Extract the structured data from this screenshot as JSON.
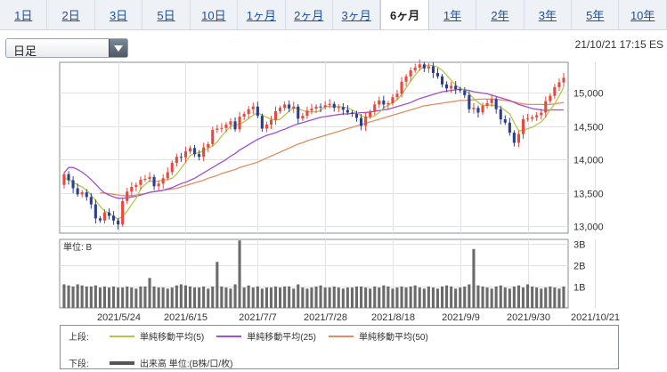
{
  "tabs": [
    {
      "label": "1日"
    },
    {
      "label": "2日"
    },
    {
      "label": "3日"
    },
    {
      "label": "5日"
    },
    {
      "label": "10日"
    },
    {
      "label": "1ヶ月"
    },
    {
      "label": "2ヶ月"
    },
    {
      "label": "3ヶ月"
    },
    {
      "label": "6ヶ月",
      "active": true
    },
    {
      "label": "1年"
    },
    {
      "label": "2年"
    },
    {
      "label": "3年"
    },
    {
      "label": "5年"
    },
    {
      "label": "10年"
    }
  ],
  "period_select": {
    "value": "日足"
  },
  "timestamp": "21/10/21 17:15 ES",
  "colors": {
    "up": "#e8483d",
    "down": "#2c3f8f",
    "ma5": "#b7c64a",
    "ma25": "#a24fd0",
    "ma50": "#e38d62",
    "volume": "#6b6b6b",
    "tab_link": "#1a4fa3"
  },
  "legend": {
    "upper_label": "上段:",
    "lower_label": "下段:",
    "ma5": "単純移動平均(5)",
    "ma25": "単純移動平均(25)",
    "ma50": "単純移動平均(50)",
    "volume": "出来高 単位:(B株/口/枚)"
  },
  "chart_data": [
    {
      "type": "candlestick",
      "ylim": [
        12900,
        15450
      ],
      "y_ticks": [
        "15,000",
        "14,500",
        "14,000",
        "13,500",
        "13,000"
      ],
      "y_tick_values": [
        15000,
        14500,
        14000,
        13500,
        13000
      ],
      "x_tick_labels": [
        "2021/5/24",
        "2021/6/15",
        "2021/7/7",
        "2021/7/28",
        "2021/8/18",
        "2021/9/9",
        "2021/9/30",
        "2021/10/21"
      ],
      "x_tick_index": [
        12,
        27,
        43,
        58,
        73,
        88,
        103,
        118
      ],
      "closes": [
        13780,
        13690,
        13570,
        13480,
        13510,
        13440,
        13330,
        13120,
        13090,
        13210,
        13160,
        13090,
        13030,
        13380,
        13520,
        13590,
        13620,
        13700,
        13710,
        13740,
        13600,
        13640,
        13720,
        13810,
        13950,
        14040,
        14030,
        14120,
        14170,
        14080,
        14040,
        14180,
        14230,
        14440,
        14460,
        14470,
        14520,
        14570,
        14450,
        14640,
        14680,
        14750,
        14790,
        14650,
        14460,
        14520,
        14590,
        14720,
        14770,
        14820,
        14760,
        14790,
        14610,
        14650,
        14730,
        14760,
        14790,
        14780,
        14810,
        14830,
        14770,
        14780,
        14740,
        14700,
        14680,
        14620,
        14500,
        14640,
        14710,
        14820,
        14880,
        14820,
        14840,
        14930,
        14980,
        15160,
        15240,
        15330,
        15370,
        15420,
        15360,
        15390,
        15290,
        15240,
        15120,
        15060,
        15100,
        15050,
        15030,
        14960,
        14750,
        14770,
        14700,
        14800,
        14840,
        14900,
        14750,
        14600,
        14550,
        14400,
        14250,
        14380,
        14600,
        14610,
        14630,
        14660,
        14700,
        14870,
        14950,
        15080,
        15150,
        15220
      ],
      "opens": [
        13620,
        13780,
        13690,
        13570,
        13480,
        13510,
        13440,
        13330,
        13120,
        13090,
        13210,
        13160,
        13090,
        13030,
        13380,
        13520,
        13590,
        13620,
        13700,
        13710,
        13740,
        13600,
        13640,
        13720,
        13810,
        13950,
        14040,
        14030,
        14120,
        14170,
        14080,
        14040,
        14180,
        14230,
        14440,
        14460,
        14470,
        14520,
        14570,
        14450,
        14640,
        14680,
        14750,
        14790,
        14650,
        14460,
        14520,
        14590,
        14720,
        14770,
        14820,
        14760,
        14790,
        14610,
        14650,
        14730,
        14760,
        14790,
        14780,
        14810,
        14830,
        14770,
        14780,
        14740,
        14700,
        14680,
        14620,
        14500,
        14640,
        14710,
        14820,
        14880,
        14820,
        14840,
        14930,
        14980,
        15160,
        15240,
        15330,
        15370,
        15420,
        15360,
        15390,
        15290,
        15240,
        15120,
        15060,
        15100,
        15050,
        15030,
        14960,
        14750,
        14770,
        14700,
        14800,
        14840,
        14900,
        14750,
        14600,
        14550,
        14400,
        14250,
        14380,
        14600,
        14610,
        14630,
        14660,
        14700,
        14870,
        14950,
        15080,
        15150
      ],
      "ma5": [
        13720,
        13700,
        13660,
        13620,
        13590,
        13540,
        13470,
        13390,
        13300,
        13230,
        13200,
        13150,
        13110,
        13150,
        13230,
        13330,
        13420,
        13560,
        13630,
        13680,
        13670,
        13680,
        13690,
        13700,
        13720,
        13780,
        13870,
        13960,
        14060,
        14090,
        14100,
        14130,
        14170,
        14200,
        14260,
        14350,
        14420,
        14500,
        14510,
        14530,
        14560,
        14610,
        14660,
        14700,
        14660,
        14630,
        14600,
        14590,
        14600,
        14660,
        14720,
        14770,
        14760,
        14730,
        14710,
        14710,
        14710,
        14730,
        14790,
        14790,
        14790,
        14790,
        14780,
        14770,
        14740,
        14700,
        14650,
        14630,
        14630,
        14650,
        14700,
        14770,
        14810,
        14850,
        14890,
        14970,
        15070,
        15170,
        15260,
        15340,
        15390,
        15410,
        15400,
        15380,
        15330,
        15260,
        15180,
        15110,
        15060,
        15040,
        14980,
        14910,
        14850,
        14800,
        14810,
        14810,
        14800,
        14780,
        14730,
        14680,
        14550,
        14430,
        14430,
        14460,
        14480,
        14520,
        14560,
        14640,
        14740,
        14830,
        14950,
        15080
      ],
      "ma25": [
        13800,
        13880,
        13880,
        13850,
        13810,
        13760,
        13700,
        13630,
        13560,
        13500,
        13470,
        13440,
        13420,
        13420,
        13430,
        13440,
        13450,
        13470,
        13490,
        13510,
        13520,
        13530,
        13540,
        13560,
        13580,
        13610,
        13640,
        13660,
        13690,
        13720,
        13760,
        13800,
        13840,
        13880,
        13920,
        13960,
        14000,
        14050,
        14090,
        14140,
        14180,
        14220,
        14260,
        14300,
        14330,
        14360,
        14380,
        14400,
        14430,
        14450,
        14480,
        14510,
        14530,
        14550,
        14570,
        14590,
        14610,
        14630,
        14640,
        14650,
        14660,
        14670,
        14680,
        14680,
        14690,
        14690,
        14700,
        14700,
        14710,
        14720,
        14730,
        14740,
        14750,
        14770,
        14790,
        14810,
        14830,
        14850,
        14880,
        14910,
        14930,
        14950,
        14970,
        14990,
        15010,
        15020,
        15030,
        15040,
        15050,
        15040,
        15030,
        15010,
        15000,
        14990,
        14980,
        14960,
        14940,
        14920,
        14900,
        14880,
        14850,
        14820,
        14800,
        14780,
        14760,
        14750,
        14740,
        14730,
        14740,
        14740,
        14740,
        14740
      ],
      "ma50": [
        null,
        null,
        null,
        null,
        null,
        null,
        null,
        null,
        13500,
        13500,
        13490,
        13480,
        13470,
        13460,
        13460,
        13460,
        13470,
        13480,
        13490,
        13510,
        13520,
        13530,
        13540,
        13550,
        13560,
        13570,
        13590,
        13610,
        13630,
        13650,
        13670,
        13690,
        13720,
        13740,
        13760,
        13790,
        13810,
        13830,
        13850,
        13880,
        13900,
        13920,
        13940,
        13960,
        13990,
        14020,
        14050,
        14080,
        14110,
        14140,
        14170,
        14200,
        14230,
        14250,
        14280,
        14300,
        14320,
        14340,
        14360,
        14380,
        14400,
        14420,
        14440,
        14460,
        14480,
        14500,
        14520,
        14540,
        14560,
        14580,
        14600,
        14620,
        14640,
        14660,
        14680,
        14700,
        14720,
        14740,
        14760,
        14780,
        14800,
        14810,
        14820,
        14830,
        14840,
        14850,
        14860,
        14870,
        14880,
        14880,
        14890,
        14890,
        14900,
        14900,
        14900,
        14900,
        14900,
        14890,
        14880,
        14870,
        14860,
        14840,
        14830,
        14820,
        14820,
        14820,
        14820,
        14820,
        14820,
        14830,
        14840,
        14850
      ]
    },
    {
      "type": "bar",
      "title": "単位: B",
      "ylim": [
        0,
        3.2
      ],
      "y_ticks": [
        "3B",
        "2B",
        "1B"
      ],
      "y_tick_values": [
        3,
        2,
        1
      ],
      "values": [
        1.1,
        1.05,
        1.0,
        1.1,
        1.05,
        1.0,
        1.0,
        1.05,
        0.95,
        1.0,
        0.95,
        1.0,
        0.95,
        0.95,
        1.0,
        0.95,
        0.9,
        1.0,
        1.0,
        1.4,
        1.0,
        0.95,
        0.95,
        0.9,
        0.95,
        1.05,
        1.1,
        1.05,
        1.0,
        0.95,
        0.95,
        1.0,
        0.9,
        1.0,
        2.15,
        1.0,
        0.95,
        0.9,
        1.1,
        3.15,
        0.95,
        1.05,
        0.95,
        1.0,
        0.9,
        0.95,
        0.95,
        1.0,
        0.95,
        1.0,
        1.0,
        0.9,
        1.1,
        0.95,
        0.9,
        0.95,
        1.0,
        1.05,
        0.95,
        0.95,
        1.0,
        0.95,
        0.9,
        0.95,
        0.95,
        1.0,
        1.0,
        0.95,
        0.9,
        1.0,
        0.95,
        1.05,
        1.0,
        0.9,
        0.95,
        1.0,
        0.95,
        1.0,
        1.05,
        0.95,
        0.9,
        1.0,
        0.95,
        0.9,
        1.0,
        1.05,
        1.0,
        0.9,
        0.95,
        1.0,
        1.1,
        2.75,
        1.05,
        1.0,
        0.95,
        0.9,
        1.0,
        1.05,
        0.95,
        0.9,
        1.0,
        1.05,
        0.95,
        1.1,
        1.0,
        0.95,
        0.9,
        0.95,
        1.0,
        0.95,
        0.9,
        1.0
      ]
    }
  ]
}
